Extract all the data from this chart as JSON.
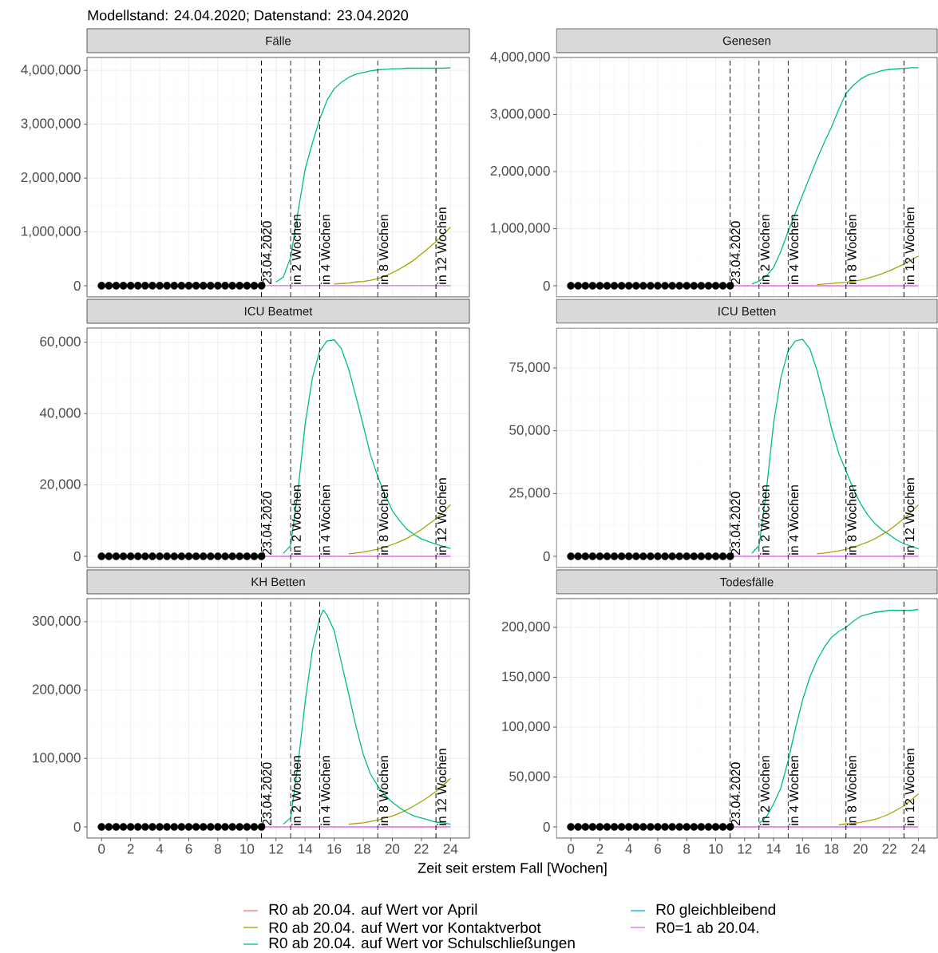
{
  "chart_data": [
    {
      "type": "line",
      "title": "Fälle",
      "subtitle": "Modellstand: 24.04.2020; Datenstand: 23.04.2020",
      "grid": true,
      "tick_labels": "y",
      "xlim": [
        -1,
        25.3
      ],
      "xticks": [
        0,
        2,
        4,
        6,
        8,
        10,
        12,
        14,
        16,
        18,
        20,
        22,
        24
      ],
      "ylim": [
        -208000,
        4240000
      ],
      "yticks": [
        {
          "value": 0,
          "label": "0"
        },
        {
          "value": 1000000,
          "label": "1,000,000"
        },
        {
          "value": 2000000,
          "label": "2,000,000"
        },
        {
          "value": 3000000,
          "label": "3,000,000"
        },
        {
          "value": 4000000,
          "label": "4,000,000"
        }
      ],
      "ref_lines": [
        {
          "axis": "x",
          "value": 11,
          "label": "23.04.2020",
          "line_style": "dashed",
          "color": "#000000"
        },
        {
          "axis": "x",
          "value": 13,
          "label": "in 2 Wochen",
          "line_style": "dashed",
          "color": "#000000"
        },
        {
          "axis": "x",
          "value": 15,
          "label": "in 4 Wochen",
          "line_style": "dashed",
          "color": "#000000"
        },
        {
          "axis": "x",
          "value": 19,
          "label": "in 8 Wochen",
          "line_style": "dashed",
          "color": "#000000"
        },
        {
          "axis": "x",
          "value": 23,
          "label": "in 12 Wochen",
          "line_style": "dashed",
          "color": "#000000"
        }
      ],
      "x": [
        3.3,
        7,
        11,
        11.5,
        12,
        12.5,
        13,
        13.5,
        14,
        14.5,
        15,
        15.5,
        16,
        16.5,
        17,
        17.5,
        18,
        18.5,
        19,
        19.5,
        20,
        20.5,
        21,
        21.5,
        22,
        22.5,
        23,
        23.5,
        24
      ],
      "series": [
        {
          "type": "scatter",
          "marker": "circle",
          "color": "#000000",
          "x": [
            0,
            0.5,
            1,
            1.5,
            2,
            2.5,
            3,
            3.5,
            4,
            4.5,
            5,
            5.5,
            6,
            6.5,
            7,
            7.5,
            8,
            8.5,
            9,
            9.5,
            10,
            10.5,
            11
          ],
          "values": [
            0,
            0,
            0,
            0,
            0,
            0,
            0,
            0,
            0,
            0,
            0,
            0,
            0,
            0,
            0,
            0,
            0,
            0,
            0,
            0,
            0,
            0,
            0
          ]
        },
        {
          "color": "#A3A500",
          "values": [
            null,
            null,
            null,
            null,
            null,
            null,
            null,
            null,
            null,
            null,
            null,
            null,
            30000,
            40000,
            50000,
            70000,
            80000,
            100000,
            130000,
            180000,
            240000,
            310000,
            390000,
            480000,
            590000,
            700000,
            820000,
            950000,
            1090000
          ]
        },
        {
          "color": "#00BF7D",
          "values": [
            null,
            null,
            null,
            null,
            70000,
            160000,
            520000,
            1350000,
            2160000,
            2650000,
            3090000,
            3440000,
            3660000,
            3780000,
            3870000,
            3930000,
            3960000,
            3990000,
            4010000,
            4020000,
            4030000,
            4030000,
            4040000,
            4040000,
            4040000,
            4040000,
            4040000,
            4040000,
            4050000
          ]
        },
        {
          "color": "#E76BF3",
          "values": [
            0,
            0,
            0,
            0,
            0,
            0,
            0,
            0,
            0,
            0,
            0,
            0,
            0,
            0,
            0,
            0,
            0,
            0,
            0,
            0,
            0,
            0,
            0,
            0,
            0,
            0,
            0,
            0,
            0
          ]
        }
      ]
    },
    {
      "type": "line",
      "title": "Genesen",
      "grid": true,
      "tick_labels": "y",
      "xlim": [
        -1,
        25.3
      ],
      "xticks": [
        0,
        2,
        4,
        6,
        8,
        10,
        12,
        14,
        16,
        18,
        20,
        22,
        24
      ],
      "ylim": [
        -196000,
        4000000
      ],
      "yticks": [
        {
          "value": 0,
          "label": "0"
        },
        {
          "value": 1000000,
          "label": "1,000,000"
        },
        {
          "value": 2000000,
          "label": "2,000,000"
        },
        {
          "value": 3000000,
          "label": "3,000,000"
        },
        {
          "value": 4000000,
          "label": "4,000,000"
        }
      ],
      "ref_lines": [
        {
          "axis": "x",
          "value": 11,
          "label": "23.04.2020",
          "line_style": "dashed",
          "color": "#000000"
        },
        {
          "axis": "x",
          "value": 13,
          "label": "in 2 Wochen",
          "line_style": "dashed",
          "color": "#000000"
        },
        {
          "axis": "x",
          "value": 15,
          "label": "in 4 Wochen",
          "line_style": "dashed",
          "color": "#000000"
        },
        {
          "axis": "x",
          "value": 19,
          "label": "in 8 Wochen",
          "line_style": "dashed",
          "color": "#000000"
        },
        {
          "axis": "x",
          "value": 23,
          "label": "in 12 Wochen",
          "line_style": "dashed",
          "color": "#000000"
        }
      ],
      "x": [
        4.1,
        7,
        11,
        11.5,
        12,
        12.5,
        13,
        13.5,
        14,
        14.5,
        15,
        15.5,
        16,
        16.5,
        17,
        17.5,
        18,
        18.5,
        19,
        19.5,
        20,
        20.5,
        21,
        21.5,
        22,
        22.5,
        23,
        23.5,
        24
      ],
      "series": [
        {
          "type": "scatter",
          "marker": "circle",
          "color": "#000000",
          "x": [
            0,
            0.5,
            1,
            1.5,
            2,
            2.5,
            3,
            3.5,
            4,
            4.5,
            5,
            5.5,
            6,
            6.5,
            7,
            7.5,
            8,
            8.5,
            9,
            9.5,
            10,
            10.5,
            11
          ],
          "values": [
            0,
            0,
            0,
            0,
            0,
            0,
            0,
            0,
            0,
            0,
            0,
            0,
            0,
            0,
            0,
            0,
            0,
            0,
            0,
            0,
            0,
            0,
            0
          ]
        },
        {
          "color": "#A3A500",
          "values": [
            null,
            null,
            null,
            null,
            null,
            null,
            null,
            null,
            null,
            null,
            null,
            null,
            null,
            null,
            20000,
            30000,
            40000,
            50000,
            60000,
            80000,
            100000,
            130000,
            170000,
            210000,
            260000,
            320000,
            380000,
            450000,
            520000
          ]
        },
        {
          "color": "#00BF7D",
          "values": [
            null,
            null,
            null,
            null,
            null,
            30000,
            80000,
            170000,
            320000,
            600000,
            950000,
            1270000,
            1590000,
            1910000,
            2220000,
            2510000,
            2780000,
            3090000,
            3370000,
            3510000,
            3620000,
            3690000,
            3730000,
            3770000,
            3790000,
            3800000,
            3810000,
            3820000,
            3820000
          ]
        },
        {
          "color": "#E76BF3",
          "values": [
            0,
            0,
            0,
            0,
            0,
            0,
            0,
            0,
            0,
            0,
            0,
            0,
            0,
            0,
            0,
            0,
            0,
            0,
            0,
            0,
            0,
            0,
            0,
            0,
            0,
            0,
            0,
            0,
            0
          ]
        }
      ]
    },
    {
      "type": "line",
      "title": "ICU Beatmet",
      "grid": true,
      "tick_labels": "y",
      "xlim": [
        -1,
        25.3
      ],
      "xticks": [
        0,
        2,
        4,
        6,
        8,
        10,
        12,
        14,
        16,
        18,
        20,
        22,
        24
      ],
      "ylim": [
        -3130,
        64000
      ],
      "yticks": [
        {
          "value": 0,
          "label": "0"
        },
        {
          "value": 20000,
          "label": "20,000"
        },
        {
          "value": 40000,
          "label": "40,000"
        },
        {
          "value": 60000,
          "label": "60,000"
        }
      ],
      "ref_lines": [
        {
          "axis": "x",
          "value": 11,
          "label": "23.04.2020",
          "line_style": "dashed",
          "color": "#000000"
        },
        {
          "axis": "x",
          "value": 13,
          "label": "in 2 Wochen",
          "line_style": "dashed",
          "color": "#000000"
        },
        {
          "axis": "x",
          "value": 15,
          "label": "in 4 Wochen",
          "line_style": "dashed",
          "color": "#000000"
        },
        {
          "axis": "x",
          "value": 19,
          "label": "in 8 Wochen",
          "line_style": "dashed",
          "color": "#000000"
        },
        {
          "axis": "x",
          "value": 23,
          "label": "in 12 Wochen",
          "line_style": "dashed",
          "color": "#000000"
        }
      ],
      "x": [
        4.5,
        7,
        11,
        11.5,
        12,
        12.5,
        13,
        13.5,
        14,
        14.5,
        15,
        15.5,
        16,
        16.5,
        17,
        17.5,
        18,
        18.5,
        19,
        19.5,
        20,
        20.5,
        21,
        21.5,
        22,
        22.5,
        23,
        23.5,
        24
      ],
      "series": [
        {
          "type": "scatter",
          "marker": "circle",
          "color": "#000000",
          "x": [
            0,
            0.5,
            1,
            1.5,
            2,
            2.5,
            3,
            3.5,
            4,
            4.5,
            5,
            5.5,
            6,
            6.5,
            7,
            7.5,
            8,
            8.5,
            9,
            9.5,
            10,
            10.5,
            11
          ],
          "values": [
            0,
            0,
            0,
            0,
            0,
            0,
            0,
            0,
            0,
            0,
            0,
            0,
            0,
            0,
            0,
            0,
            0,
            0,
            0,
            0,
            0,
            0,
            0
          ]
        },
        {
          "color": "#A3A500",
          "values": [
            null,
            null,
            null,
            null,
            null,
            null,
            null,
            null,
            null,
            null,
            null,
            null,
            null,
            null,
            700,
            900,
            1200,
            1600,
            2000,
            2600,
            3300,
            4100,
            5000,
            6200,
            7500,
            9000,
            10500,
            12400,
            14500
          ]
        },
        {
          "color": "#00BF7D",
          "values": [
            null,
            null,
            null,
            null,
            null,
            800,
            3000,
            18000,
            37000,
            50000,
            57500,
            60400,
            60700,
            58200,
            52400,
            44800,
            36700,
            28400,
            22400,
            17200,
            12800,
            10000,
            7600,
            6100,
            4900,
            4100,
            3400,
            2800,
            2200
          ]
        },
        {
          "color": "#E76BF3",
          "values": [
            0,
            0,
            0,
            0,
            0,
            0,
            0,
            0,
            0,
            0,
            0,
            0,
            0,
            0,
            0,
            0,
            0,
            0,
            0,
            0,
            0,
            0,
            0,
            0,
            0,
            0,
            0,
            0,
            0
          ]
        }
      ]
    },
    {
      "type": "line",
      "title": "ICU Betten",
      "grid": true,
      "tick_labels": "y",
      "xlim": [
        -1,
        25.3
      ],
      "xticks": [
        0,
        2,
        4,
        6,
        8,
        10,
        12,
        14,
        16,
        18,
        20,
        22,
        24
      ],
      "ylim": [
        -4450,
        90900
      ],
      "yticks": [
        {
          "value": 0,
          "label": "0"
        },
        {
          "value": 25000,
          "label": "25,000"
        },
        {
          "value": 50000,
          "label": "50,000"
        },
        {
          "value": 75000,
          "label": "75,000"
        }
      ],
      "ref_lines": [
        {
          "axis": "x",
          "value": 11,
          "label": "23.04.2020",
          "line_style": "dashed",
          "color": "#000000"
        },
        {
          "axis": "x",
          "value": 13,
          "label": "in 2 Wochen",
          "line_style": "dashed",
          "color": "#000000"
        },
        {
          "axis": "x",
          "value": 15,
          "label": "in 4 Wochen",
          "line_style": "dashed",
          "color": "#000000"
        },
        {
          "axis": "x",
          "value": 19,
          "label": "in 8 Wochen",
          "line_style": "dashed",
          "color": "#000000"
        },
        {
          "axis": "x",
          "value": 23,
          "label": "in 12 Wochen",
          "line_style": "dashed",
          "color": "#000000"
        }
      ],
      "x": [
        4.4,
        7,
        11,
        11.5,
        12,
        12.5,
        13,
        13.5,
        14,
        14.5,
        15,
        15.5,
        16,
        16.5,
        17,
        17.5,
        18,
        18.5,
        19,
        19.5,
        20,
        20.5,
        21,
        21.5,
        22,
        22.5,
        23,
        23.5,
        24
      ],
      "series": [
        {
          "type": "scatter",
          "marker": "circle",
          "color": "#000000",
          "x": [
            0,
            0.5,
            1,
            1.5,
            2,
            2.5,
            3,
            3.5,
            4,
            4.5,
            5,
            5.5,
            6,
            6.5,
            7,
            7.5,
            8,
            8.5,
            9,
            9.5,
            10,
            10.5,
            11
          ],
          "values": [
            0,
            0,
            0,
            0,
            0,
            0,
            0,
            0,
            0,
            0,
            0,
            0,
            0,
            0,
            0,
            0,
            0,
            0,
            0,
            0,
            0,
            0,
            0
          ]
        },
        {
          "color": "#A3A500",
          "values": [
            null,
            null,
            null,
            null,
            null,
            null,
            null,
            null,
            null,
            null,
            null,
            null,
            null,
            null,
            1000,
            1300,
            1700,
            2200,
            2800,
            3600,
            4600,
            5700,
            7000,
            8700,
            10500,
            12700,
            15000,
            17700,
            20500
          ]
        },
        {
          "color": "#00BF7D",
          "values": [
            null,
            null,
            null,
            null,
            null,
            1200,
            4300,
            26000,
            53000,
            71000,
            81700,
            85800,
            86400,
            82700,
            74000,
            63000,
            51000,
            41000,
            34000,
            27000,
            21000,
            16500,
            13000,
            10500,
            8600,
            6500,
            5000,
            4000,
            3000
          ]
        },
        {
          "color": "#E76BF3",
          "values": [
            0,
            0,
            0,
            0,
            0,
            0,
            0,
            0,
            0,
            0,
            0,
            0,
            0,
            0,
            0,
            0,
            0,
            0,
            0,
            0,
            0,
            0,
            0,
            0,
            0,
            0,
            0,
            0,
            0
          ]
        }
      ]
    },
    {
      "type": "line",
      "title": "KH Betten",
      "xlabel": "Zeit seit erstem Fall [Wochen]",
      "grid": true,
      "legend": "bottom",
      "xlim": [
        -1,
        25.3
      ],
      "xticks": [
        0,
        2,
        4,
        6,
        8,
        10,
        12,
        14,
        16,
        18,
        20,
        22,
        24
      ],
      "ylim": [
        -16300,
        333700
      ],
      "yticks": [
        {
          "value": 0,
          "label": "0"
        },
        {
          "value": 100000,
          "label": "100,000"
        },
        {
          "value": 200000,
          "label": "200,000"
        },
        {
          "value": 300000,
          "label": "300,000"
        }
      ],
      "ref_lines": [
        {
          "axis": "x",
          "value": 11,
          "label": "23.04.2020",
          "line_style": "dashed",
          "color": "#000000"
        },
        {
          "axis": "x",
          "value": 13,
          "label": "in 2 Wochen",
          "line_style": "dashed",
          "color": "#000000"
        },
        {
          "axis": "x",
          "value": 15,
          "label": "in 4 Wochen",
          "line_style": "dashed",
          "color": "#000000"
        },
        {
          "axis": "x",
          "value": 19,
          "label": "in 8 Wochen",
          "line_style": "dashed",
          "color": "#000000"
        },
        {
          "axis": "x",
          "value": 23,
          "label": "in 12 Wochen",
          "line_style": "dashed",
          "color": "#000000"
        }
      ],
      "x": [
        4,
        7,
        11,
        11.5,
        12,
        12.5,
        13,
        13.5,
        14,
        14.5,
        15,
        15.25,
        15.5,
        16,
        16.5,
        17,
        17.5,
        18,
        18.5,
        19,
        19.5,
        20,
        20.5,
        21,
        21.5,
        22,
        22.5,
        23,
        23.5,
        24
      ],
      "series": [
        {
          "type": "scatter",
          "marker": "circle",
          "color": "#000000",
          "x": [
            0,
            0.5,
            1,
            1.5,
            2,
            2.5,
            3,
            3.5,
            4,
            4.5,
            5,
            5.5,
            6,
            6.5,
            7,
            7.5,
            8,
            8.5,
            9,
            9.5,
            10,
            10.5,
            11
          ],
          "values": [
            0,
            0,
            0,
            0,
            0,
            0,
            0,
            0,
            0,
            0,
            0,
            0,
            0,
            0,
            0,
            0,
            0,
            0,
            0,
            0,
            0,
            0,
            0
          ]
        },
        {
          "name": "R0 ab 20.04. auf Wert vor April",
          "color": "#F8766D",
          "values": [
            null,
            null,
            null,
            null,
            null,
            null,
            null,
            null,
            null,
            null,
            null,
            null,
            null,
            null,
            null,
            null,
            null,
            null,
            null,
            null,
            null,
            null,
            null,
            null,
            null,
            null,
            null,
            null,
            null,
            null
          ]
        },
        {
          "name": "R0 ab 20.04. auf Wert vor Kontaktverbot",
          "color": "#A3A500",
          "values": [
            null,
            null,
            null,
            null,
            null,
            null,
            null,
            null,
            null,
            null,
            null,
            null,
            null,
            null,
            null,
            4000,
            5000,
            6000,
            8000,
            10000,
            13000,
            16000,
            20000,
            25000,
            31000,
            37000,
            44000,
            52000,
            61000,
            71000
          ]
        },
        {
          "name": "R0 ab 20.04. auf Wert vor Schulschließungen",
          "color": "#00BF7D",
          "values": [
            null,
            null,
            null,
            null,
            null,
            4000,
            13000,
            89000,
            182000,
            258000,
            305000,
            317000,
            310000,
            287000,
            240000,
            194000,
            147000,
            106000,
            77000,
            60000,
            46000,
            36000,
            28000,
            21000,
            16000,
            13000,
            10000,
            7000,
            6000,
            4000
          ]
        },
        {
          "name": "R0 gleichbleibend",
          "color": "#00B0F6",
          "values": [
            null,
            null,
            null,
            null,
            null,
            null,
            null,
            null,
            null,
            null,
            null,
            null,
            null,
            null,
            null,
            null,
            null,
            null,
            null,
            null,
            null,
            null,
            null,
            null,
            null,
            null,
            null,
            null,
            null,
            null
          ]
        },
        {
          "name": "R0=1 ab 20.04.",
          "color": "#E76BF3",
          "values": [
            0,
            0,
            0,
            0,
            0,
            0,
            0,
            0,
            0,
            0,
            0,
            0,
            0,
            0,
            0,
            0,
            0,
            0,
            0,
            0,
            0,
            0,
            0,
            0,
            0,
            0,
            0,
            0,
            0,
            0
          ]
        }
      ]
    },
    {
      "type": "line",
      "title": "Todesfälle",
      "grid": true,
      "xlim": [
        -1,
        25.3
      ],
      "xticks": [
        0,
        2,
        4,
        6,
        8,
        10,
        12,
        14,
        16,
        18,
        20,
        22,
        24
      ],
      "ylim": [
        -11200,
        228800
      ],
      "yticks": [
        {
          "value": 0,
          "label": "0"
        },
        {
          "value": 50000,
          "label": "50,000"
        },
        {
          "value": 100000,
          "label": "100,000"
        },
        {
          "value": 150000,
          "label": "150,000"
        },
        {
          "value": 200000,
          "label": "200,000"
        }
      ],
      "ref_lines": [
        {
          "axis": "x",
          "value": 11,
          "label": "23.04.2020",
          "line_style": "dashed",
          "color": "#000000"
        },
        {
          "axis": "x",
          "value": 13,
          "label": "in 2 Wochen",
          "line_style": "dashed",
          "color": "#000000"
        },
        {
          "axis": "x",
          "value": 15,
          "label": "in 4 Wochen",
          "line_style": "dashed",
          "color": "#000000"
        },
        {
          "axis": "x",
          "value": 19,
          "label": "in 8 Wochen",
          "line_style": "dashed",
          "color": "#000000"
        },
        {
          "axis": "x",
          "value": 23,
          "label": "in 12 Wochen",
          "line_style": "dashed",
          "color": "#000000"
        }
      ],
      "x": [
        5.3,
        7,
        11,
        11.5,
        12,
        12.5,
        13,
        13.5,
        14,
        14.5,
        15,
        15.5,
        16,
        16.5,
        17,
        17.5,
        18,
        18.5,
        19,
        19.5,
        20,
        20.5,
        21,
        21.5,
        22,
        22.5,
        23,
        23.5,
        24
      ],
      "series": [
        {
          "type": "scatter",
          "marker": "circle",
          "color": "#000000",
          "x": [
            0,
            0.5,
            1,
            1.5,
            2,
            2.5,
            3,
            3.5,
            4,
            4.5,
            5,
            5.5,
            6,
            6.5,
            7,
            7.5,
            8,
            8.5,
            9,
            9.5,
            10,
            10.5,
            11
          ],
          "values": [
            0,
            0,
            0,
            0,
            0,
            0,
            0,
            0,
            0,
            0,
            0,
            0,
            0,
            0,
            0,
            0,
            0,
            0,
            0,
            0,
            0,
            0,
            0
          ]
        },
        {
          "color": "#A3A500",
          "values": [
            null,
            null,
            null,
            null,
            null,
            null,
            null,
            null,
            null,
            null,
            null,
            null,
            null,
            null,
            null,
            null,
            null,
            2000,
            3000,
            3500,
            4500,
            6000,
            7500,
            10000,
            13000,
            17000,
            21000,
            27000,
            33000
          ]
        },
        {
          "color": "#00BF7D",
          "values": [
            null,
            null,
            null,
            null,
            null,
            null,
            3500,
            10000,
            23000,
            39000,
            66000,
            98000,
            127000,
            150000,
            167000,
            180000,
            190000,
            196000,
            200000,
            206000,
            211000,
            213000,
            215000,
            216000,
            217000,
            217000,
            217000,
            217000,
            218000
          ]
        },
        {
          "color": "#E76BF3",
          "values": [
            0,
            0,
            0,
            0,
            0,
            0,
            0,
            0,
            0,
            0,
            0,
            0,
            0,
            0,
            0,
            0,
            0,
            0,
            0,
            0,
            0,
            0,
            0,
            0,
            0,
            0,
            0,
            0,
            0
          ]
        }
      ]
    }
  ]
}
